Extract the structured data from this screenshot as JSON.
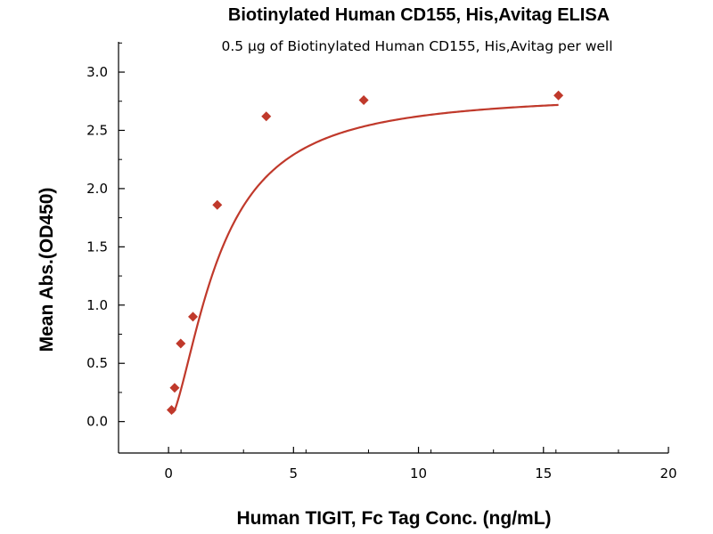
{
  "chart_data": {
    "type": "scatter",
    "title": "Biotinylated Human CD155, His,Avitag ELISA",
    "subtitle": "0.5 μg of Biotinylated Human CD155, His,Avitag per well",
    "xlabel": "Human TIGIT, Fc Tag Conc. (ng/mL)",
    "ylabel": "Mean Abs.(OD450)",
    "xlim": [
      -2,
      20
    ],
    "ylim": [
      -0.27,
      3.26
    ],
    "xticks": [
      0,
      5,
      10,
      15,
      20
    ],
    "xtick_labels": [
      "0",
      "5",
      "10",
      "15",
      "20"
    ],
    "yticks": [
      0.0,
      0.5,
      1.0,
      1.5,
      2.0,
      2.5,
      3.0
    ],
    "ytick_labels": [
      "0.0",
      "0.5",
      "1.0",
      "1.5",
      "2.0",
      "2.5",
      "3.0"
    ],
    "grid": false,
    "series": [
      {
        "color": "#c0392b",
        "marker": "diamond",
        "fit_line": true,
        "x": [
          0.122,
          0.244,
          0.488,
          0.977,
          1.95,
          3.91,
          7.81,
          15.6
        ],
        "y": [
          0.1,
          0.29,
          0.67,
          0.9,
          1.86,
          2.62,
          2.76,
          2.8
        ]
      }
    ]
  }
}
